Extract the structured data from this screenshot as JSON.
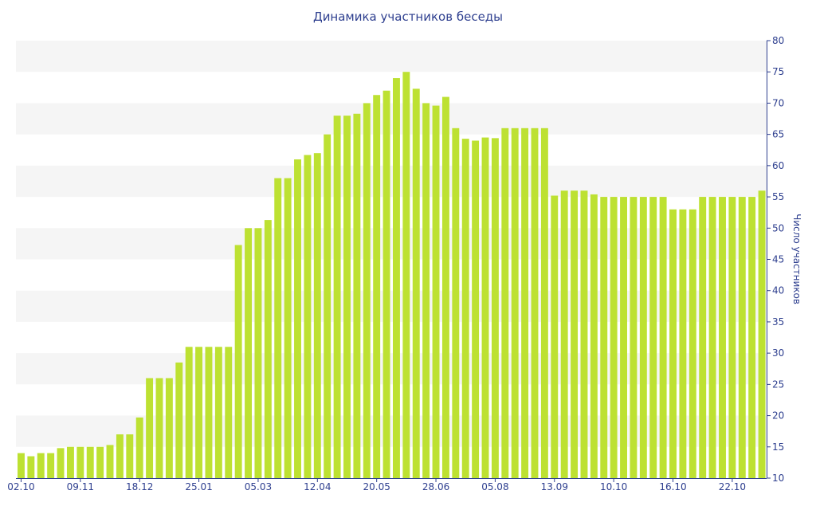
{
  "chart_data": {
    "type": "bar",
    "title": "Динамика участников беседы",
    "ylabel": "Число участников",
    "xlabel": "",
    "ylim": [
      10,
      80
    ],
    "yticks": [
      10,
      15,
      20,
      25,
      30,
      35,
      40,
      45,
      50,
      55,
      60,
      65,
      70,
      75,
      80
    ],
    "x_tick_labels": [
      "02.10",
      "09.11",
      "18.12",
      "25.01",
      "05.03",
      "12.04",
      "20.05",
      "28.06",
      "05.08",
      "13.09",
      "10.10",
      "16.10",
      "22.10"
    ],
    "x_tick_bar_index": [
      0,
      6,
      12,
      18,
      24,
      30,
      36,
      42,
      48,
      54,
      60,
      66,
      72
    ],
    "values": [
      14,
      13.5,
      14,
      14,
      14.8,
      15,
      15,
      15,
      15,
      15.3,
      17,
      17,
      19.7,
      26,
      26,
      26,
      28.5,
      31,
      31,
      31,
      31,
      31,
      47.3,
      50,
      50,
      51.3,
      58,
      58,
      61,
      61.7,
      62,
      65,
      68,
      68,
      68.3,
      70,
      71.3,
      72,
      74,
      75,
      72.3,
      70,
      69.6,
      71,
      66,
      64.3,
      64,
      64.5,
      64.4,
      66,
      66,
      66,
      66,
      66,
      55.2,
      56,
      56,
      56,
      55.4,
      55,
      55,
      55,
      55,
      55,
      55,
      55,
      53,
      53,
      53,
      55,
      55,
      55,
      55,
      55,
      55,
      56
    ],
    "bar_color": "#bde132",
    "band_color": "#f5f5f5",
    "axis_color": "#2e3f8f",
    "grid": "alternating horizontal bands",
    "y_axis_position": "right"
  }
}
